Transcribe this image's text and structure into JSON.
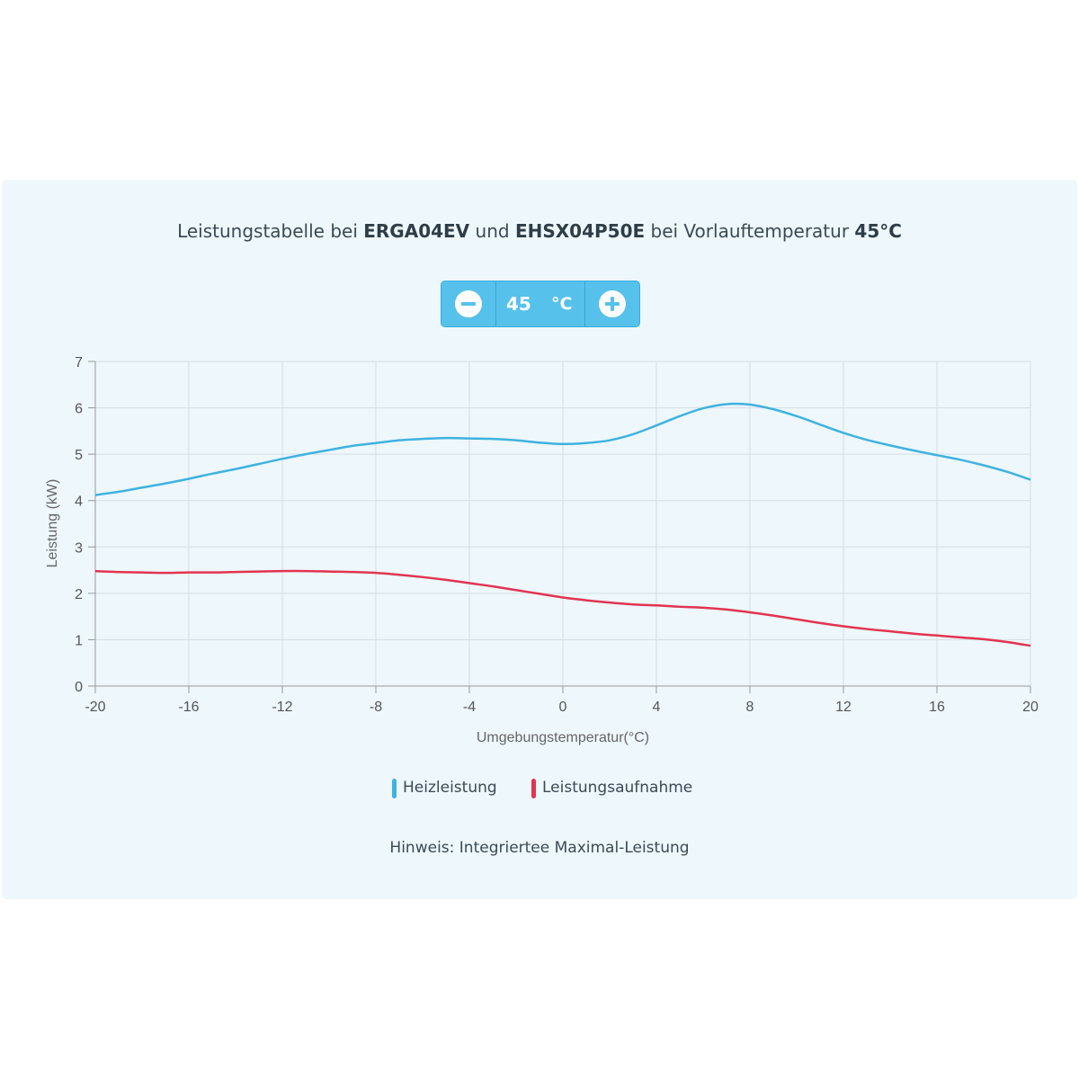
{
  "header": {
    "title_parts": [
      {
        "text": "Leistungstabelle bei ",
        "bold": false
      },
      {
        "text": "ERGA04EV",
        "bold": true
      },
      {
        "text": " und ",
        "bold": false
      },
      {
        "text": "EHSX04P50E",
        "bold": true
      },
      {
        "text": " bei Vorlauftemperatur ",
        "bold": false
      },
      {
        "text": "45°C",
        "bold": true
      }
    ]
  },
  "stepper": {
    "value": "45",
    "unit": "°C",
    "decrement_icon": "minus-circle-icon",
    "increment_icon": "plus-circle-icon"
  },
  "colors": {
    "accent": "#56c1ea",
    "series_heat": "#3fb2df",
    "series_power": "#e2344f"
  },
  "chart_data": {
    "type": "line",
    "xlabel": "Umgebungstemperatur(°C)",
    "ylabel": "Leistung (kW)",
    "xlim": [
      -20,
      20
    ],
    "ylim": [
      0,
      7
    ],
    "xticks": [
      -20,
      -16,
      -12,
      -8,
      -4,
      0,
      4,
      8,
      12,
      16,
      20
    ],
    "yticks": [
      0,
      1,
      2,
      3,
      4,
      5,
      6,
      7
    ],
    "grid": true,
    "legend_position": "bottom-center",
    "x": [
      -20,
      -19,
      -18,
      -17,
      -16,
      -15,
      -14,
      -13,
      -12,
      -11,
      -10,
      -9,
      -8,
      -7,
      -6,
      -5,
      -4,
      -3,
      -2,
      -1,
      0,
      1,
      2,
      3,
      4,
      5,
      6,
      7,
      8,
      9,
      10,
      11,
      12,
      13,
      14,
      15,
      16,
      17,
      18,
      19,
      20
    ],
    "series": [
      {
        "name": "Heizleistung",
        "color": "#3fb2df",
        "values": [
          4.12,
          4.19,
          4.28,
          4.37,
          4.47,
          4.58,
          4.68,
          4.79,
          4.9,
          5.0,
          5.09,
          5.18,
          5.24,
          5.3,
          5.33,
          5.35,
          5.34,
          5.33,
          5.3,
          5.25,
          5.22,
          5.24,
          5.3,
          5.43,
          5.62,
          5.82,
          5.99,
          6.08,
          6.07,
          5.97,
          5.82,
          5.64,
          5.46,
          5.31,
          5.19,
          5.08,
          4.98,
          4.88,
          4.76,
          4.62,
          4.45
        ]
      },
      {
        "name": "Leistungsaufnahme",
        "color": "#e2344f",
        "values": [
          2.48,
          2.46,
          2.45,
          2.44,
          2.45,
          2.45,
          2.46,
          2.47,
          2.48,
          2.48,
          2.47,
          2.46,
          2.44,
          2.4,
          2.35,
          2.29,
          2.22,
          2.15,
          2.07,
          1.99,
          1.91,
          1.85,
          1.8,
          1.76,
          1.74,
          1.71,
          1.69,
          1.65,
          1.59,
          1.52,
          1.44,
          1.36,
          1.29,
          1.23,
          1.18,
          1.13,
          1.09,
          1.05,
          1.01,
          0.95,
          0.87
        ]
      }
    ]
  },
  "note": "Hinweis: Integriertee Maximal-Leistung"
}
